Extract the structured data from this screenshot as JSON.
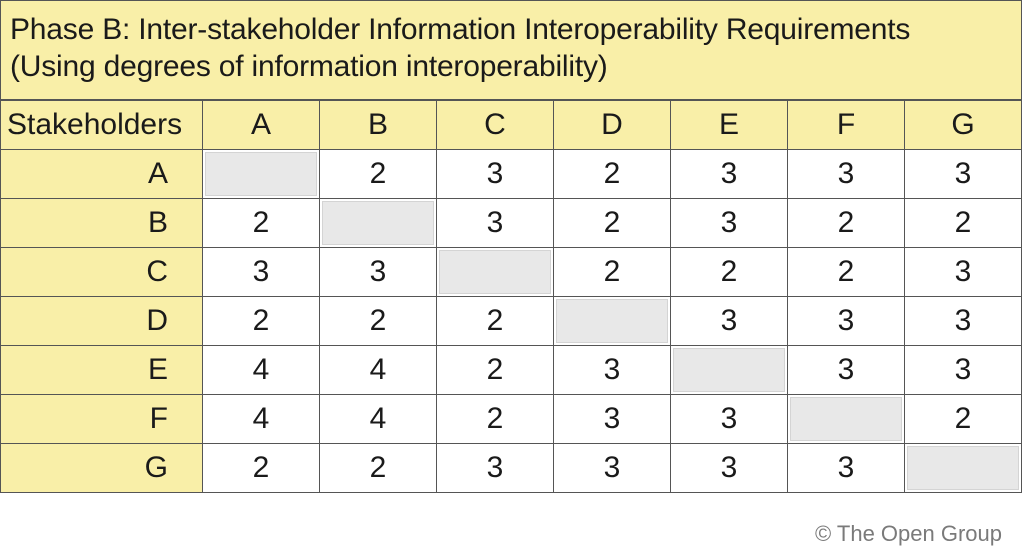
{
  "title": {
    "line1": "Phase B: Inter-stakeholder Information Interoperability Requirements",
    "line2": "(Using degrees of information interoperability)"
  },
  "matrix": {
    "corner_label": "Stakeholders",
    "column_headers": [
      "A",
      "B",
      "C",
      "D",
      "E",
      "F",
      "G"
    ],
    "rows": [
      {
        "label": "A",
        "cells": [
          "",
          "2",
          "3",
          "2",
          "3",
          "3",
          "3"
        ]
      },
      {
        "label": "B",
        "cells": [
          "2",
          "",
          "3",
          "2",
          "3",
          "2",
          "2"
        ]
      },
      {
        "label": "C",
        "cells": [
          "3",
          "3",
          "",
          "2",
          "2",
          "2",
          "3"
        ]
      },
      {
        "label": "D",
        "cells": [
          "2",
          "2",
          "2",
          "",
          "3",
          "3",
          "3"
        ]
      },
      {
        "label": "E",
        "cells": [
          "4",
          "4",
          "2",
          "3",
          "",
          "3",
          "3"
        ]
      },
      {
        "label": "F",
        "cells": [
          "4",
          "4",
          "2",
          "3",
          "3",
          "",
          "2"
        ]
      },
      {
        "label": "G",
        "cells": [
          "2",
          "2",
          "3",
          "3",
          "3",
          "3",
          ""
        ]
      }
    ]
  },
  "copyright": "© The Open Group",
  "colors": {
    "header_fill": "#f9efa8",
    "diagonal_fill": "#e8e8e8",
    "cell_fill": "#ffffff",
    "border": "#555555"
  }
}
